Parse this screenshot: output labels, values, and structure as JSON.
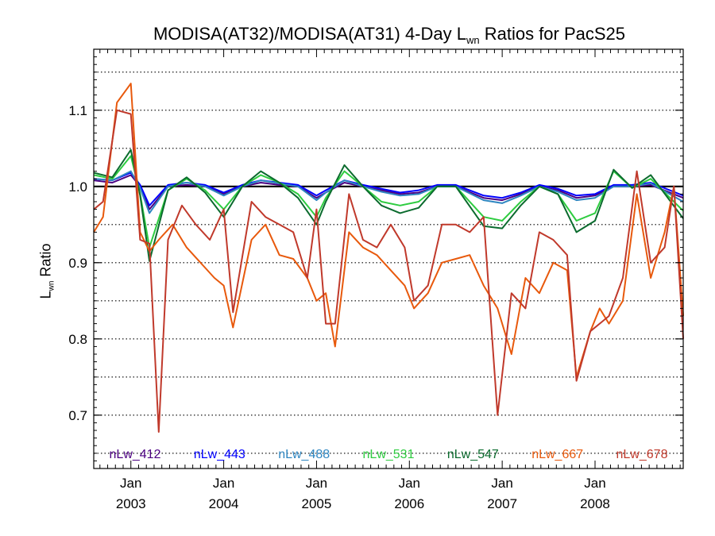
{
  "chart_data": {
    "type": "line",
    "title_prefix": "MODISA(AT32)/MODISA(AT31) 4-Day L",
    "title_sub": "wn",
    "title_suffix": " Ratios for PacS25",
    "ylabel_prefix": "L",
    "ylabel_sub": "wn",
    "ylabel_suffix": " Ratio",
    "ylim": [
      0.63,
      1.18
    ],
    "xlim": [
      2002.6,
      2008.95
    ],
    "yticks": [
      0.7,
      0.8,
      0.9,
      1.0,
      1.1
    ],
    "ytick_labels": [
      "0.7",
      "0.8",
      "0.9",
      "1.0",
      "1.1"
    ],
    "y_gridlines": [
      0.65,
      0.7,
      0.75,
      0.8,
      0.85,
      0.9,
      0.95,
      1.0,
      1.05,
      1.1,
      1.15
    ],
    "reference_line": 1.0,
    "xticks": [
      2003.0,
      2004.0,
      2005.0,
      2006.0,
      2007.0,
      2008.0
    ],
    "xtick_labels_top": [
      "Jan",
      "Jan",
      "Jan",
      "Jan",
      "Jan",
      "Jan"
    ],
    "xtick_labels_bottom": [
      "2003",
      "2004",
      "2005",
      "2006",
      "2007",
      "2008"
    ],
    "grid": true,
    "legend_placement": "bottom",
    "series": [
      {
        "name": "nLw_412",
        "color": "#4b0082",
        "x": [
          2002.6,
          2002.8,
          2003.0,
          2003.1,
          2003.2,
          2003.4,
          2003.6,
          2003.8,
          2004.0,
          2004.2,
          2004.4,
          2004.6,
          2004.8,
          2005.0,
          2005.1,
          2005.3,
          2005.5,
          2005.7,
          2005.9,
          2006.1,
          2006.3,
          2006.5,
          2006.8,
          2007.0,
          2007.2,
          2007.4,
          2007.6,
          2007.8,
          2008.0,
          2008.2,
          2008.4,
          2008.6,
          2008.95
        ],
        "values": [
          1.008,
          1.005,
          1.015,
          1.0,
          0.97,
          1.0,
          1.002,
          1.0,
          0.99,
          1.0,
          1.005,
          1.002,
          1.0,
          0.985,
          0.992,
          1.005,
          1.0,
          0.995,
          0.99,
          0.992,
          1.0,
          1.0,
          0.985,
          0.982,
          0.99,
          1.0,
          0.995,
          0.985,
          0.988,
          1.0,
          1.0,
          1.002,
          0.985
        ]
      },
      {
        "name": "nLw_443",
        "color": "#0000ff",
        "x": [
          2002.6,
          2002.8,
          2003.0,
          2003.1,
          2003.2,
          2003.4,
          2003.6,
          2003.8,
          2004.0,
          2004.2,
          2004.4,
          2004.6,
          2004.8,
          2005.0,
          2005.1,
          2005.3,
          2005.5,
          2005.7,
          2005.9,
          2006.1,
          2006.3,
          2006.5,
          2006.8,
          2007.0,
          2007.2,
          2007.4,
          2007.6,
          2007.8,
          2008.0,
          2008.2,
          2008.4,
          2008.6,
          2008.95
        ],
        "values": [
          1.01,
          1.008,
          1.018,
          1.002,
          0.975,
          1.002,
          1.005,
          1.002,
          0.992,
          1.002,
          1.008,
          1.005,
          1.002,
          0.988,
          0.995,
          1.008,
          1.002,
          0.997,
          0.992,
          0.995,
          1.002,
          1.002,
          0.988,
          0.985,
          0.992,
          1.002,
          0.997,
          0.988,
          0.99,
          1.002,
          1.002,
          1.005,
          0.988
        ]
      },
      {
        "name": "nLw_488",
        "color": "#2e86c1",
        "x": [
          2002.6,
          2002.8,
          2003.0,
          2003.1,
          2003.2,
          2003.4,
          2003.6,
          2003.8,
          2004.0,
          2004.2,
          2004.4,
          2004.6,
          2004.8,
          2005.0,
          2005.1,
          2005.3,
          2005.5,
          2005.7,
          2005.9,
          2006.1,
          2006.3,
          2006.5,
          2006.8,
          2007.0,
          2007.2,
          2007.4,
          2007.6,
          2007.8,
          2008.0,
          2008.2,
          2008.4,
          2008.6,
          2008.95
        ],
        "values": [
          1.01,
          1.008,
          1.02,
          0.998,
          0.965,
          1.0,
          1.005,
          1.0,
          0.988,
          1.0,
          1.008,
          1.004,
          1.0,
          0.982,
          0.992,
          1.008,
          1.0,
          0.993,
          0.988,
          0.99,
          1.0,
          1.0,
          0.982,
          0.978,
          0.988,
          1.0,
          0.993,
          0.982,
          0.985,
          1.0,
          1.0,
          1.004,
          0.98
        ]
      },
      {
        "name": "nLw_531",
        "color": "#2ecc40",
        "x": [
          2002.6,
          2002.8,
          2003.0,
          2003.1,
          2003.2,
          2003.4,
          2003.6,
          2003.8,
          2004.0,
          2004.2,
          2004.4,
          2004.6,
          2004.8,
          2005.0,
          2005.1,
          2005.3,
          2005.5,
          2005.7,
          2005.9,
          2006.1,
          2006.3,
          2006.5,
          2006.8,
          2007.0,
          2007.2,
          2007.4,
          2007.6,
          2007.8,
          2008.0,
          2008.2,
          2008.4,
          2008.6,
          2008.95
        ],
        "values": [
          1.015,
          1.01,
          1.04,
          0.99,
          0.92,
          0.995,
          1.01,
          0.995,
          0.97,
          1.0,
          1.015,
          1.005,
          0.99,
          0.96,
          0.985,
          1.02,
          1.0,
          0.98,
          0.975,
          0.98,
          1.0,
          1.0,
          0.96,
          0.955,
          0.98,
          1.0,
          0.99,
          0.955,
          0.965,
          1.02,
          0.998,
          1.01,
          0.968
        ]
      },
      {
        "name": "nLw_547",
        "color": "#0b6b2e",
        "x": [
          2002.6,
          2002.8,
          2003.0,
          2003.1,
          2003.2,
          2003.4,
          2003.6,
          2003.8,
          2004.0,
          2004.2,
          2004.4,
          2004.6,
          2004.8,
          2005.0,
          2005.1,
          2005.3,
          2005.5,
          2005.7,
          2005.9,
          2006.1,
          2006.3,
          2006.5,
          2006.8,
          2007.0,
          2007.2,
          2007.4,
          2007.6,
          2007.8,
          2008.0,
          2008.2,
          2008.4,
          2008.6,
          2008.95
        ],
        "values": [
          1.018,
          1.012,
          1.048,
          0.988,
          0.902,
          0.995,
          1.012,
          0.992,
          0.96,
          1.0,
          1.02,
          1.005,
          0.985,
          0.95,
          0.98,
          1.028,
          1.0,
          0.975,
          0.965,
          0.972,
          1.0,
          1.0,
          0.948,
          0.945,
          0.975,
          1.0,
          0.99,
          0.94,
          0.955,
          1.022,
          0.998,
          1.015,
          0.958
        ]
      },
      {
        "name": "nLw_667",
        "color": "#e8590c",
        "x": [
          2002.6,
          2002.7,
          2002.85,
          2003.0,
          2003.1,
          2003.2,
          2003.3,
          2003.45,
          2003.6,
          2003.75,
          2003.9,
          2004.0,
          2004.1,
          2004.3,
          2004.45,
          2004.6,
          2004.75,
          2004.9,
          2005.0,
          2005.1,
          2005.2,
          2005.35,
          2005.5,
          2005.65,
          2005.8,
          2005.95,
          2006.05,
          2006.2,
          2006.35,
          2006.5,
          2006.65,
          2006.8,
          2006.95,
          2007.1,
          2007.25,
          2007.4,
          2007.55,
          2007.7,
          2007.8,
          2007.95,
          2008.05,
          2008.15,
          2008.3,
          2008.45,
          2008.6,
          2008.75,
          2008.85,
          2008.95
        ],
        "values": [
          0.94,
          0.96,
          1.11,
          1.135,
          0.94,
          0.915,
          0.93,
          0.95,
          0.92,
          0.9,
          0.88,
          0.87,
          0.815,
          0.93,
          0.95,
          0.91,
          0.905,
          0.88,
          0.85,
          0.86,
          0.79,
          0.94,
          0.92,
          0.91,
          0.89,
          0.87,
          0.84,
          0.86,
          0.9,
          0.905,
          0.91,
          0.87,
          0.84,
          0.78,
          0.88,
          0.86,
          0.9,
          0.89,
          0.75,
          0.81,
          0.84,
          0.82,
          0.85,
          0.99,
          0.88,
          0.94,
          1.0,
          0.83
        ]
      },
      {
        "name": "nLw_678",
        "color": "#c0392b",
        "x": [
          2002.6,
          2002.7,
          2002.85,
          2003.0,
          2003.1,
          2003.2,
          2003.3,
          2003.4,
          2003.55,
          2003.7,
          2003.85,
          2004.0,
          2004.1,
          2004.3,
          2004.45,
          2004.6,
          2004.75,
          2004.9,
          2005.0,
          2005.1,
          2005.2,
          2005.35,
          2005.5,
          2005.65,
          2005.8,
          2005.95,
          2006.05,
          2006.2,
          2006.35,
          2006.5,
          2006.65,
          2006.8,
          2006.95,
          2007.1,
          2007.25,
          2007.4,
          2007.55,
          2007.7,
          2007.8,
          2007.95,
          2008.05,
          2008.15,
          2008.3,
          2008.45,
          2008.6,
          2008.75,
          2008.85,
          2008.95
        ],
        "values": [
          0.97,
          0.98,
          1.1,
          1.095,
          0.93,
          0.925,
          0.678,
          0.93,
          0.975,
          0.95,
          0.93,
          0.97,
          0.835,
          0.98,
          0.96,
          0.95,
          0.94,
          0.88,
          0.97,
          0.82,
          0.82,
          0.99,
          0.93,
          0.92,
          0.95,
          0.92,
          0.85,
          0.87,
          0.95,
          0.95,
          0.94,
          0.96,
          0.7,
          0.86,
          0.84,
          0.94,
          0.93,
          0.91,
          0.745,
          0.81,
          0.82,
          0.83,
          0.88,
          1.02,
          0.9,
          0.92,
          1.0,
          0.8
        ]
      }
    ]
  }
}
